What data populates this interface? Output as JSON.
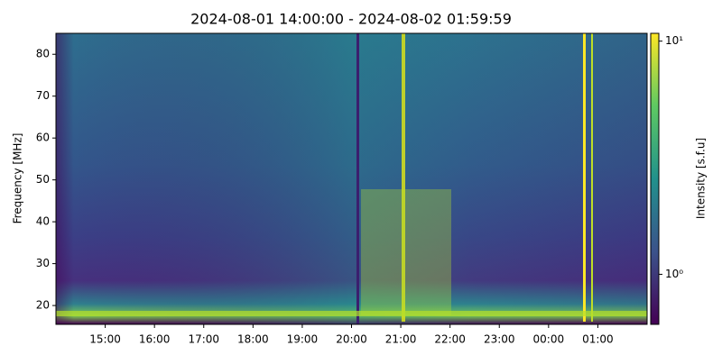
{
  "chart_data": {
    "type": "spectrogram",
    "title": "2024-08-01 14:00:00 - 2024-08-02 01:59:59",
    "y_label": "Frequency [MHz]",
    "xlim": [
      14,
      26
    ],
    "xticks": [
      {
        "value": 15,
        "label": "15:00"
      },
      {
        "value": 16,
        "label": "16:00"
      },
      {
        "value": 17,
        "label": "17:00"
      },
      {
        "value": 18,
        "label": "18:00"
      },
      {
        "value": 19,
        "label": "19:00"
      },
      {
        "value": 20,
        "label": "20:00"
      },
      {
        "value": 21,
        "label": "21:00"
      },
      {
        "value": 22,
        "label": "22:00"
      },
      {
        "value": 23,
        "label": "23:00"
      },
      {
        "value": 24,
        "label": "00:00"
      },
      {
        "value": 25,
        "label": "01:00"
      }
    ],
    "ylim": [
      15.5,
      85
    ],
    "yticks": [
      20,
      30,
      40,
      50,
      60,
      70,
      80
    ],
    "colorbar": {
      "label": "Intensity [s.f.u]",
      "scale": "log",
      "lim": [
        0.61,
        10.8
      ],
      "ticks": [
        {
          "value": 1,
          "label": "10⁰"
        },
        {
          "value": 10,
          "label": "10¹"
        }
      ]
    }
  }
}
